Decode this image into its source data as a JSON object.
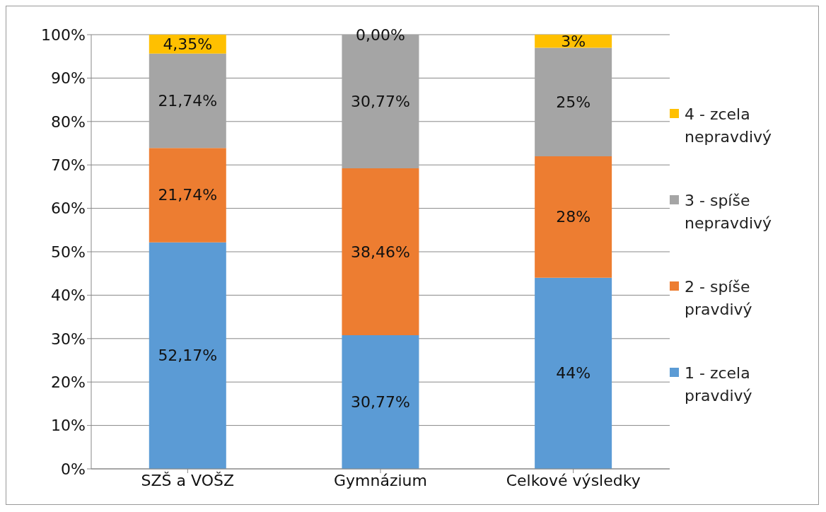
{
  "chart_data": {
    "type": "bar",
    "stacked": true,
    "categories": [
      "SZŠ a VOŠZ",
      "Gymnázium",
      "Celkové výsledky"
    ],
    "series": [
      {
        "name": "1 - zcela pravdivý",
        "color": "#5b9bd5",
        "values": [
          52.17,
          30.77,
          44
        ],
        "value_labels": [
          "52,17%",
          "30,77%",
          "44%"
        ]
      },
      {
        "name": "2 - spíše pravdivý",
        "color": "#ed7d31",
        "values": [
          21.74,
          38.46,
          28
        ],
        "value_labels": [
          "21,74%",
          "38,46%",
          "28%"
        ]
      },
      {
        "name": "3 - spíše nepravdivý",
        "color": "#a5a5a5",
        "values": [
          21.74,
          30.77,
          25
        ],
        "value_labels": [
          "21,74%",
          "30,77%",
          "25%"
        ]
      },
      {
        "name": "4 - zcela nepravdivý",
        "color": "#ffc000",
        "values": [
          4.35,
          0.0,
          3
        ],
        "value_labels": [
          "4,35%",
          "0,00%",
          "3%"
        ]
      }
    ],
    "ylim": [
      0,
      100
    ],
    "yticks": [
      {
        "value": 0,
        "label": "0%"
      },
      {
        "value": 10,
        "label": "10%"
      },
      {
        "value": 20,
        "label": "20%"
      },
      {
        "value": 30,
        "label": "30%"
      },
      {
        "value": 40,
        "label": "40%"
      },
      {
        "value": 50,
        "label": "50%"
      },
      {
        "value": 60,
        "label": "60%"
      },
      {
        "value": 70,
        "label": "70%"
      },
      {
        "value": 80,
        "label": "80%"
      },
      {
        "value": 90,
        "label": "90%"
      },
      {
        "value": 100,
        "label": "100%"
      }
    ],
    "grid": "y",
    "legend": "right"
  }
}
